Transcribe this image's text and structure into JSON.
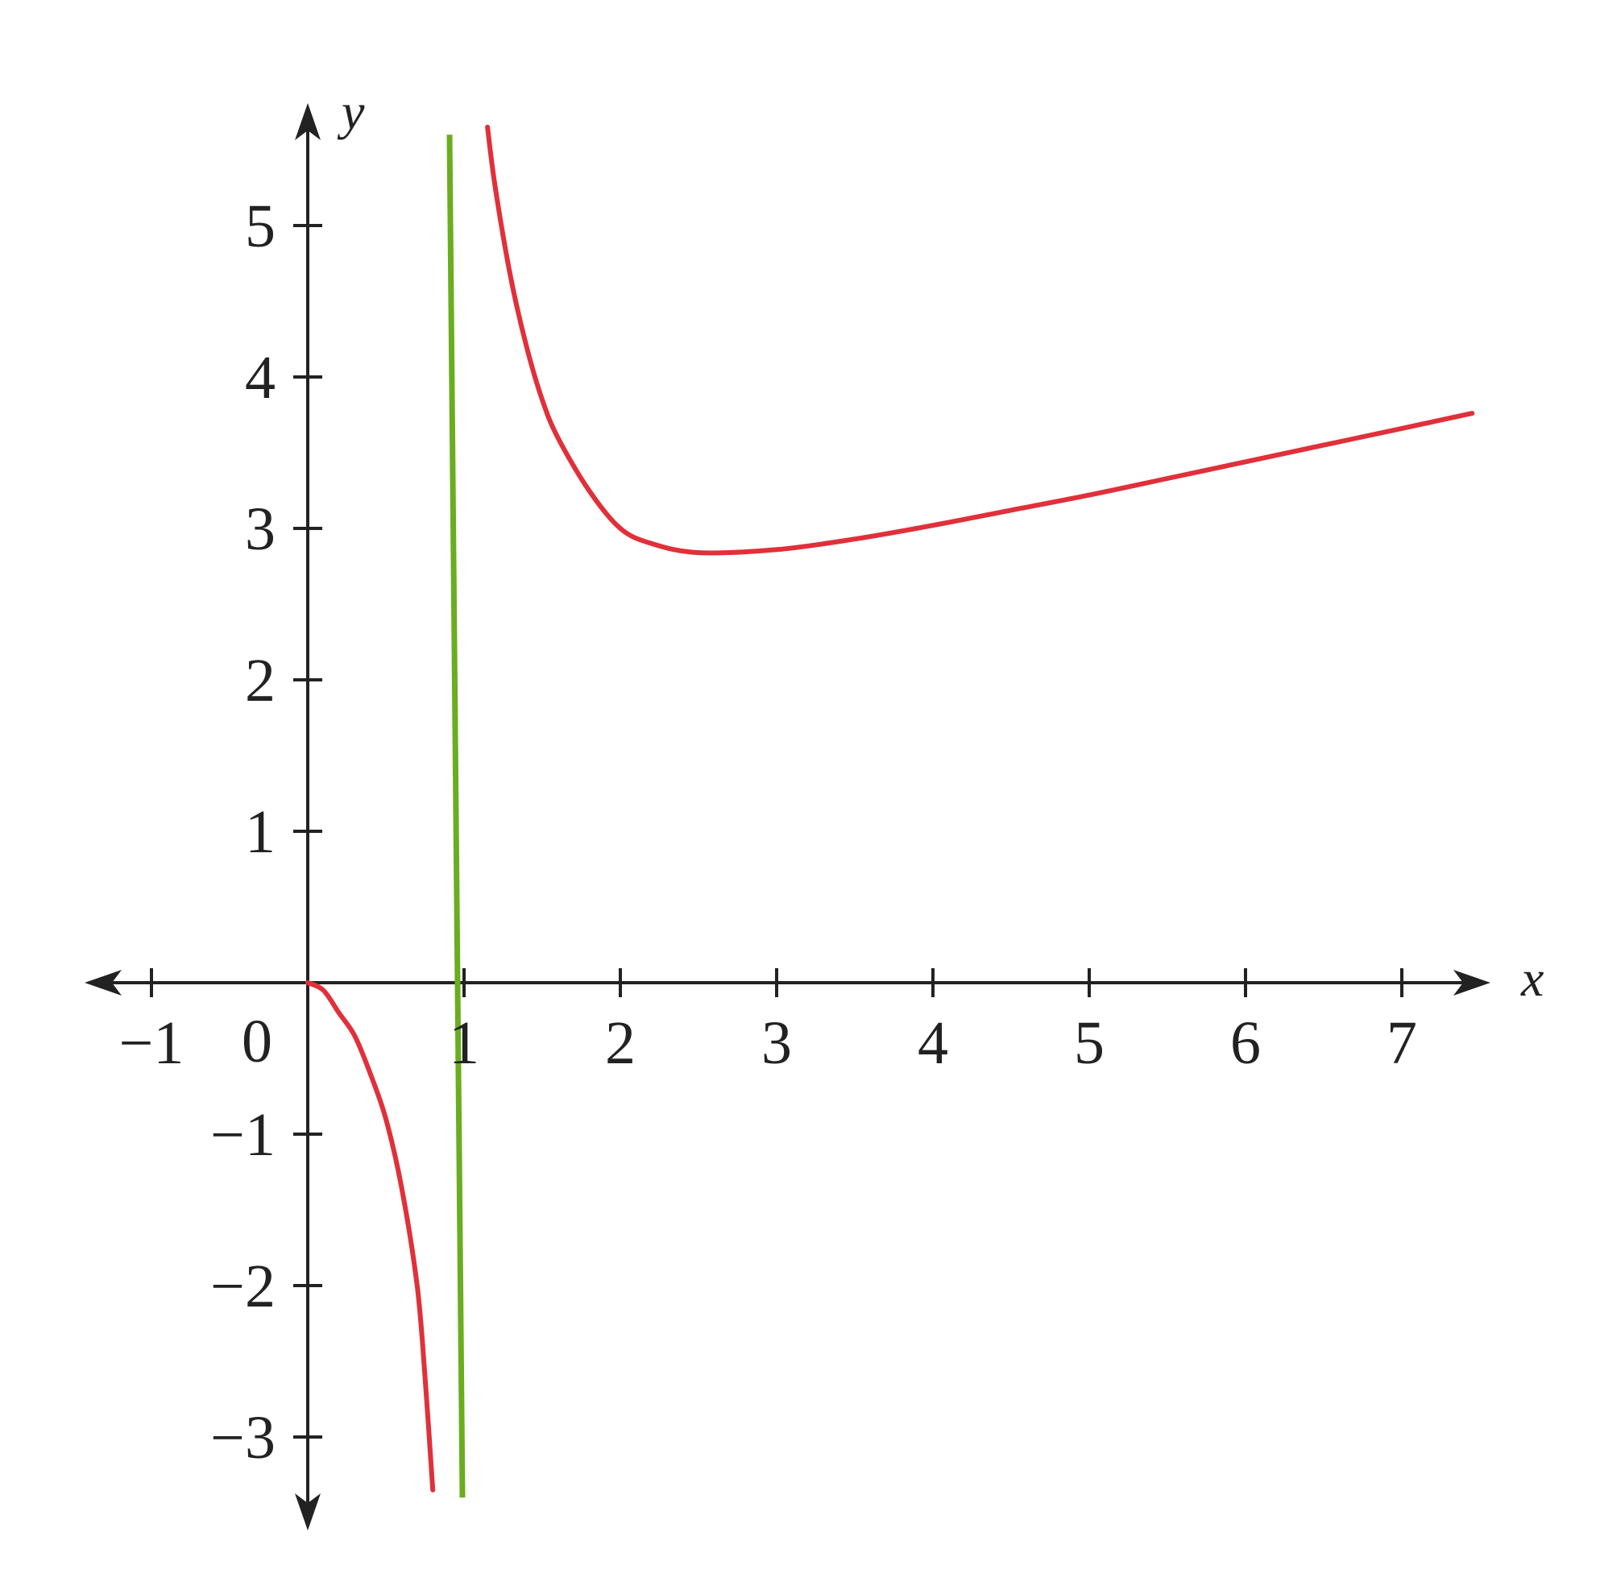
{
  "chart_data": {
    "type": "line",
    "title": "",
    "xlabel": "x",
    "ylabel": "y",
    "origin_label": "0",
    "xlim": [
      -1.2,
      7.5
    ],
    "ylim": [
      -3.4,
      5.6
    ],
    "x_ticks": [
      {
        "value": -1,
        "label": "−1"
      },
      {
        "value": 1,
        "label": "1"
      },
      {
        "value": 2,
        "label": "2"
      },
      {
        "value": 3,
        "label": "3"
      },
      {
        "value": 4,
        "label": "4"
      },
      {
        "value": 5,
        "label": "5"
      },
      {
        "value": 6,
        "label": "6"
      },
      {
        "value": 7,
        "label": "7"
      }
    ],
    "y_ticks": [
      {
        "value": -3,
        "label": "−3"
      },
      {
        "value": -2,
        "label": "−2"
      },
      {
        "value": -1,
        "label": "−1"
      },
      {
        "value": 1,
        "label": "1"
      },
      {
        "value": 2,
        "label": "2"
      },
      {
        "value": 3,
        "label": "3"
      },
      {
        "value": 4,
        "label": "4"
      },
      {
        "value": 5,
        "label": "5"
      }
    ],
    "grid": false,
    "series": [
      {
        "color": "#e0303a",
        "x": [
          0,
          0.1,
          0.2,
          0.3,
          0.4,
          0.5,
          0.6,
          0.7,
          0.75,
          0.8
        ],
        "y": [
          0,
          -0.05,
          -0.2,
          -0.35,
          -0.6,
          -0.9,
          -1.35,
          -2.0,
          -2.6,
          -3.35
        ]
      },
      {
        "color": "#e0303a",
        "x": [
          1.15,
          1.2,
          1.3,
          1.4,
          1.5,
          1.6,
          1.8,
          2.0,
          2.2,
          2.5,
          3.0,
          3.5,
          4.0,
          4.5,
          5.0,
          5.5,
          6.0,
          6.5,
          7.0,
          7.45
        ],
        "y": [
          5.65,
          5.25,
          4.65,
          4.2,
          3.85,
          3.6,
          3.25,
          3.0,
          2.9,
          2.84,
          2.86,
          2.93,
          3.02,
          3.12,
          3.22,
          3.33,
          3.44,
          3.55,
          3.66,
          3.76
        ]
      }
    ],
    "asymptote": {
      "x": 1,
      "color": "#6aad1f"
    },
    "axis_color": "#222222"
  }
}
